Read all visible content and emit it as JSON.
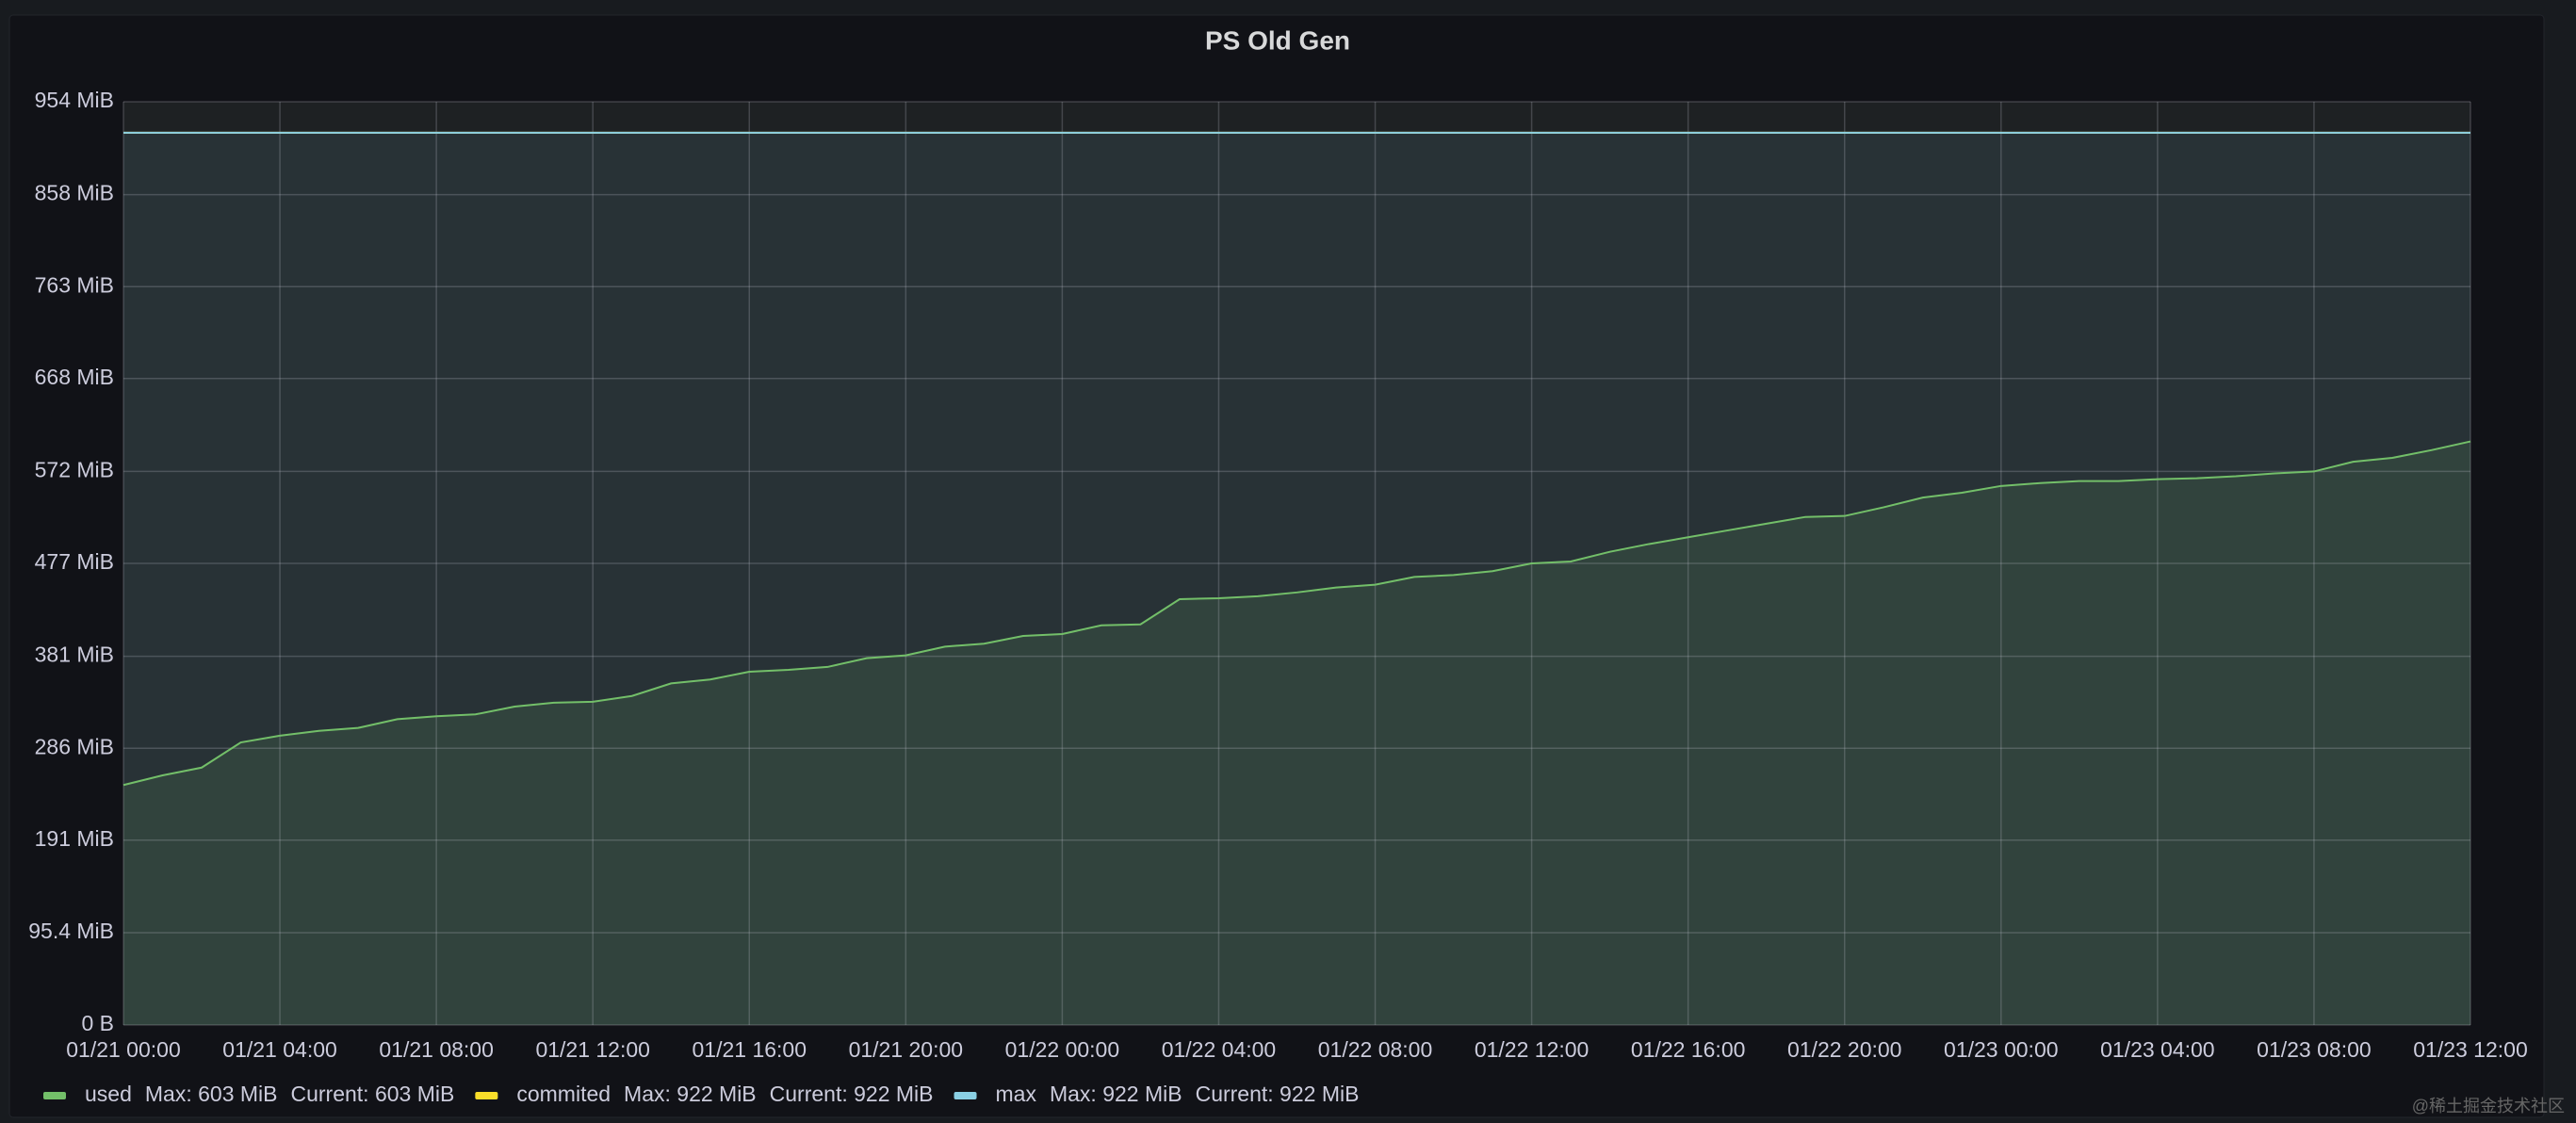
{
  "chart_data": {
    "type": "line",
    "title": "PS Old Gen",
    "x": [
      "01/21 00:00",
      "01/21 01:00",
      "01/21 02:00",
      "01/21 03:00",
      "01/21 04:00",
      "01/21 05:00",
      "01/21 06:00",
      "01/21 07:00",
      "01/21 08:00",
      "01/21 09:00",
      "01/21 10:00",
      "01/21 11:00",
      "01/21 12:00",
      "01/21 13:00",
      "01/21 14:00",
      "01/21 15:00",
      "01/21 16:00",
      "01/21 17:00",
      "01/21 18:00",
      "01/21 19:00",
      "01/21 20:00",
      "01/21 21:00",
      "01/21 22:00",
      "01/21 23:00",
      "01/22 00:00",
      "01/22 01:00",
      "01/22 02:00",
      "01/22 03:00",
      "01/22 04:00",
      "01/22 05:00",
      "01/22 06:00",
      "01/22 07:00",
      "01/22 08:00",
      "01/22 09:00",
      "01/22 10:00",
      "01/22 11:00",
      "01/22 12:00",
      "01/22 13:00",
      "01/22 14:00",
      "01/22 15:00",
      "01/22 16:00",
      "01/22 17:00",
      "01/22 18:00",
      "01/22 19:00",
      "01/22 20:00",
      "01/22 21:00",
      "01/22 22:00",
      "01/22 23:00",
      "01/23 00:00",
      "01/23 01:00",
      "01/23 02:00",
      "01/23 03:00",
      "01/23 04:00",
      "01/23 05:00",
      "01/23 06:00",
      "01/23 07:00",
      "01/23 08:00",
      "01/23 09:00",
      "01/23 10:00",
      "01/23 11:00",
      "01/23 12:00"
    ],
    "xticks": [
      "01/21 00:00",
      "01/21 04:00",
      "01/21 08:00",
      "01/21 12:00",
      "01/21 16:00",
      "01/21 20:00",
      "01/22 00:00",
      "01/22 04:00",
      "01/22 08:00",
      "01/22 12:00",
      "01/22 16:00",
      "01/22 20:00",
      "01/23 00:00",
      "01/23 04:00",
      "01/23 08:00",
      "01/23 12:00"
    ],
    "ylim": [
      0,
      954
    ],
    "yticks": [
      {
        "value": 0,
        "label": "0 B"
      },
      {
        "value": 95.4,
        "label": "95.4 MiB"
      },
      {
        "value": 191,
        "label": "191 MiB"
      },
      {
        "value": 286,
        "label": "286 MiB"
      },
      {
        "value": 381,
        "label": "381 MiB"
      },
      {
        "value": 477,
        "label": "477 MiB"
      },
      {
        "value": 572,
        "label": "572 MiB"
      },
      {
        "value": 668,
        "label": "668 MiB"
      },
      {
        "value": 763,
        "label": "763 MiB"
      },
      {
        "value": 858,
        "label": "858 MiB"
      },
      {
        "value": 954,
        "label": "954 MiB"
      }
    ],
    "grid": true,
    "series": [
      {
        "name": "used",
        "color": "#73bf69",
        "max_label": "Max: 603 MiB",
        "current_label": "Current: 603 MiB",
        "values": [
          248,
          258,
          266,
          292,
          299,
          304,
          307,
          316,
          319,
          321,
          329,
          333,
          334,
          340,
          353,
          357,
          365,
          367,
          370,
          379,
          382,
          391,
          394,
          402,
          404,
          413,
          414,
          440,
          441,
          443,
          447,
          452,
          455,
          463,
          465,
          469,
          477,
          479,
          489,
          497,
          504,
          511,
          518,
          525,
          526,
          535,
          545,
          550,
          557,
          560,
          562,
          562,
          564,
          565,
          567,
          570,
          572,
          582,
          586,
          594,
          603
        ]
      },
      {
        "name": "commited",
        "color": "#fade2a",
        "max_label": "Max: 922 MiB",
        "current_label": "Current: 922 MiB",
        "values": [
          922,
          922,
          922,
          922,
          922,
          922,
          922,
          922,
          922,
          922,
          922,
          922,
          922,
          922,
          922,
          922,
          922,
          922,
          922,
          922,
          922,
          922,
          922,
          922,
          922,
          922,
          922,
          922,
          922,
          922,
          922,
          922,
          922,
          922,
          922,
          922,
          922,
          922,
          922,
          922,
          922,
          922,
          922,
          922,
          922,
          922,
          922,
          922,
          922,
          922,
          922,
          922,
          922,
          922,
          922,
          922,
          922,
          922,
          922,
          922,
          922
        ]
      },
      {
        "name": "max",
        "color": "#8ad0e4",
        "max_label": "Max: 922 MiB",
        "current_label": "Current: 922 MiB",
        "values": [
          922,
          922,
          922,
          922,
          922,
          922,
          922,
          922,
          922,
          922,
          922,
          922,
          922,
          922,
          922,
          922,
          922,
          922,
          922,
          922,
          922,
          922,
          922,
          922,
          922,
          922,
          922,
          922,
          922,
          922,
          922,
          922,
          922,
          922,
          922,
          922,
          922,
          922,
          922,
          922,
          922,
          922,
          922,
          922,
          922,
          922,
          922,
          922,
          922,
          922,
          922,
          922,
          922,
          922,
          922,
          922,
          922,
          922,
          922,
          922,
          922
        ]
      }
    ],
    "watermark": "@稀土掘金技术社区"
  }
}
